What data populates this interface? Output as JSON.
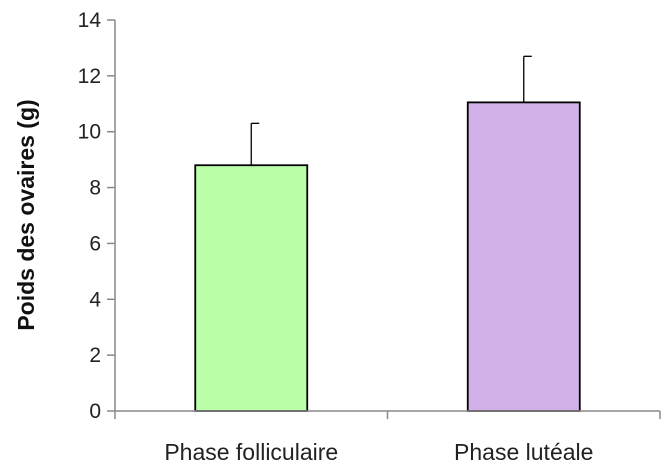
{
  "chart_data": {
    "type": "bar",
    "title": "",
    "xlabel": "",
    "ylabel": "Poids des ovaires (g)",
    "categories": [
      "Phase folliculaire",
      "Phase lutéale"
    ],
    "values": [
      8.8,
      11.05
    ],
    "error_plus": [
      1.5,
      1.65
    ],
    "bar_colors": [
      "#BBFFAA",
      "#D1B1E8"
    ],
    "ylim": [
      0,
      14
    ],
    "yticks": [
      0,
      2,
      4,
      6,
      8,
      10,
      12,
      14
    ],
    "ytick_labels": [
      "0",
      "2",
      "4",
      "6",
      "8",
      "10",
      "12",
      "14"
    ],
    "grid": false,
    "legend": "none"
  }
}
